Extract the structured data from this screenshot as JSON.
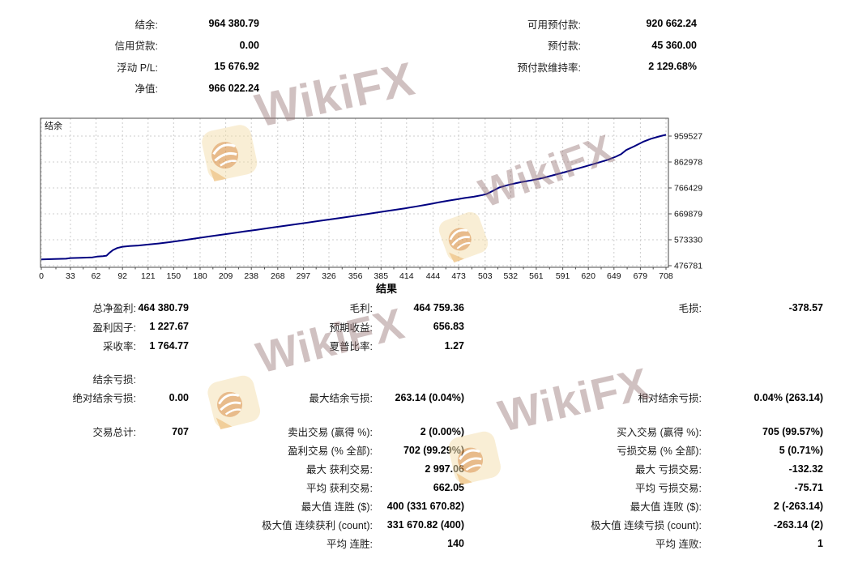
{
  "summary": {
    "rows": [
      {
        "l1": "结余:",
        "v1": "964 380.79",
        "l2": "可用预付款:",
        "v2": "920 662.24"
      },
      {
        "l1": "信用贷款:",
        "v1": "0.00",
        "l2": "预付款:",
        "v2": "45 360.00"
      },
      {
        "l1": "浮动 P/L:",
        "v1": "15 676.92",
        "l2": "预付款维持率:",
        "v2": "2 129.68%"
      },
      {
        "l1": "净值:",
        "v1": "966 022.24",
        "l2": "",
        "v2": ""
      }
    ]
  },
  "results": {
    "header": "结果",
    "profit_rows": [
      {
        "l1": "总净盈利:",
        "v1": "464 380.79",
        "l2": "毛利:",
        "v2": "464 759.36",
        "l3": "毛损:",
        "v3": "-378.57"
      },
      {
        "l1": "盈利因子:",
        "v1": "1 227.67",
        "l2": "预期收益:",
        "v2": "656.83",
        "l3": "",
        "v3": ""
      },
      {
        "l1": "采收率:",
        "v1": "1 764.77",
        "l2": "夏普比率:",
        "v2": "1.27",
        "l3": "",
        "v3": ""
      }
    ],
    "drawdown_rows": [
      {
        "l1": "结余亏损:",
        "v1": "",
        "l2": "",
        "v2": "",
        "l3": "",
        "v3": ""
      },
      {
        "l1": "绝对结余亏损:",
        "v1": "0.00",
        "l2": "最大结余亏损:",
        "v2": "263.14 (0.04%)",
        "l3": "相对结余亏损:",
        "v3": "0.04% (263.14)"
      }
    ],
    "trade_rows": [
      {
        "l1": "交易总计:",
        "v1": "707",
        "l2": "卖出交易 (赢得 %):",
        "v2": "2 (0.00%)",
        "l3": "买入交易 (赢得 %):",
        "v3": "705 (99.57%)"
      },
      {
        "l1": "",
        "v1": "",
        "l2": "盈利交易 (% 全部):",
        "v2": "702 (99.29%)",
        "l3": "亏损交易 (% 全部):",
        "v3": "5 (0.71%)"
      },
      {
        "l1": "",
        "v1": "",
        "l2": "最大 获利交易:",
        "v2": "2 997.06",
        "l3": "最大 亏损交易:",
        "v3": "-132.32"
      },
      {
        "l1": "",
        "v1": "",
        "l2": "平均 获利交易:",
        "v2": "662.05",
        "l3": "平均 亏损交易:",
        "v3": "-75.71"
      },
      {
        "l1": "",
        "v1": "",
        "l2": "最大值 连胜 ($):",
        "v2": "400 (331 670.82)",
        "l3": "最大值 连败 ($):",
        "v3": "2 (-263.14)"
      },
      {
        "l1": "",
        "v1": "",
        "l2": "极大值 连续获利 (count):",
        "v2": "331 670.82 (400)",
        "l3": "极大值 连续亏损 (count):",
        "v3": "-263.14 (2)"
      },
      {
        "l1": "",
        "v1": "",
        "l2": "平均 连胜:",
        "v2": "140",
        "l3": "平均 连败:",
        "v3": "1"
      }
    ]
  },
  "chart_data": {
    "type": "line",
    "title": "结余",
    "xlabel": "",
    "ylabel": "",
    "xlim": [
      0,
      708
    ],
    "ylim": [
      476781,
      1026000
    ],
    "grid": true,
    "line_color": "#000080",
    "x_ticks": [
      0,
      33,
      62,
      92,
      121,
      150,
      180,
      209,
      238,
      268,
      297,
      326,
      356,
      385,
      414,
      444,
      473,
      503,
      532,
      561,
      591,
      620,
      649,
      679,
      708
    ],
    "y_ticks": [
      476781,
      573330,
      669879,
      766429,
      862978,
      959527
    ],
    "series": [
      {
        "name": "结余",
        "points": [
          [
            0,
            500000
          ],
          [
            15,
            501500
          ],
          [
            28,
            502600
          ],
          [
            33,
            505200
          ],
          [
            45,
            506500
          ],
          [
            58,
            507800
          ],
          [
            63,
            510600
          ],
          [
            70,
            512200
          ],
          [
            74,
            514200
          ],
          [
            77,
            524000
          ],
          [
            81,
            534500
          ],
          [
            86,
            542500
          ],
          [
            92,
            547500
          ],
          [
            100,
            550200
          ],
          [
            110,
            552000
          ],
          [
            121,
            555500
          ],
          [
            133,
            559500
          ],
          [
            146,
            564500
          ],
          [
            160,
            571000
          ],
          [
            174,
            577800
          ],
          [
            188,
            584500
          ],
          [
            202,
            591000
          ],
          [
            216,
            597500
          ],
          [
            230,
            604000
          ],
          [
            244,
            610500
          ],
          [
            258,
            617000
          ],
          [
            272,
            623500
          ],
          [
            286,
            630000
          ],
          [
            300,
            636500
          ],
          [
            314,
            643000
          ],
          [
            328,
            649500
          ],
          [
            342,
            656000
          ],
          [
            356,
            662500
          ],
          [
            370,
            669500
          ],
          [
            384,
            676500
          ],
          [
            398,
            683500
          ],
          [
            412,
            690500
          ],
          [
            426,
            698000
          ],
          [
            440,
            706000
          ],
          [
            452,
            713500
          ],
          [
            462,
            719500
          ],
          [
            472,
            724500
          ],
          [
            480,
            729000
          ],
          [
            490,
            733500
          ],
          [
            500,
            740000
          ],
          [
            505,
            744000
          ],
          [
            512,
            756000
          ],
          [
            519,
            768000
          ],
          [
            526,
            774500
          ],
          [
            531,
            779000
          ],
          [
            543,
            787500
          ],
          [
            555,
            794500
          ],
          [
            568,
            803000
          ],
          [
            580,
            813500
          ],
          [
            593,
            825000
          ],
          [
            605,
            836000
          ],
          [
            617,
            847000
          ],
          [
            630,
            859500
          ],
          [
            642,
            871000
          ],
          [
            651,
            882500
          ],
          [
            657,
            892000
          ],
          [
            663,
            907500
          ],
          [
            672,
            921500
          ],
          [
            682,
            938000
          ],
          [
            691,
            949500
          ],
          [
            700,
            958000
          ],
          [
            708,
            964381
          ]
        ]
      }
    ]
  },
  "watermark": {
    "text": "WikiFX"
  },
  "colors": {
    "curve": "#000080",
    "grid": "#cccccc",
    "watermark_logo": "#d98e3f"
  }
}
